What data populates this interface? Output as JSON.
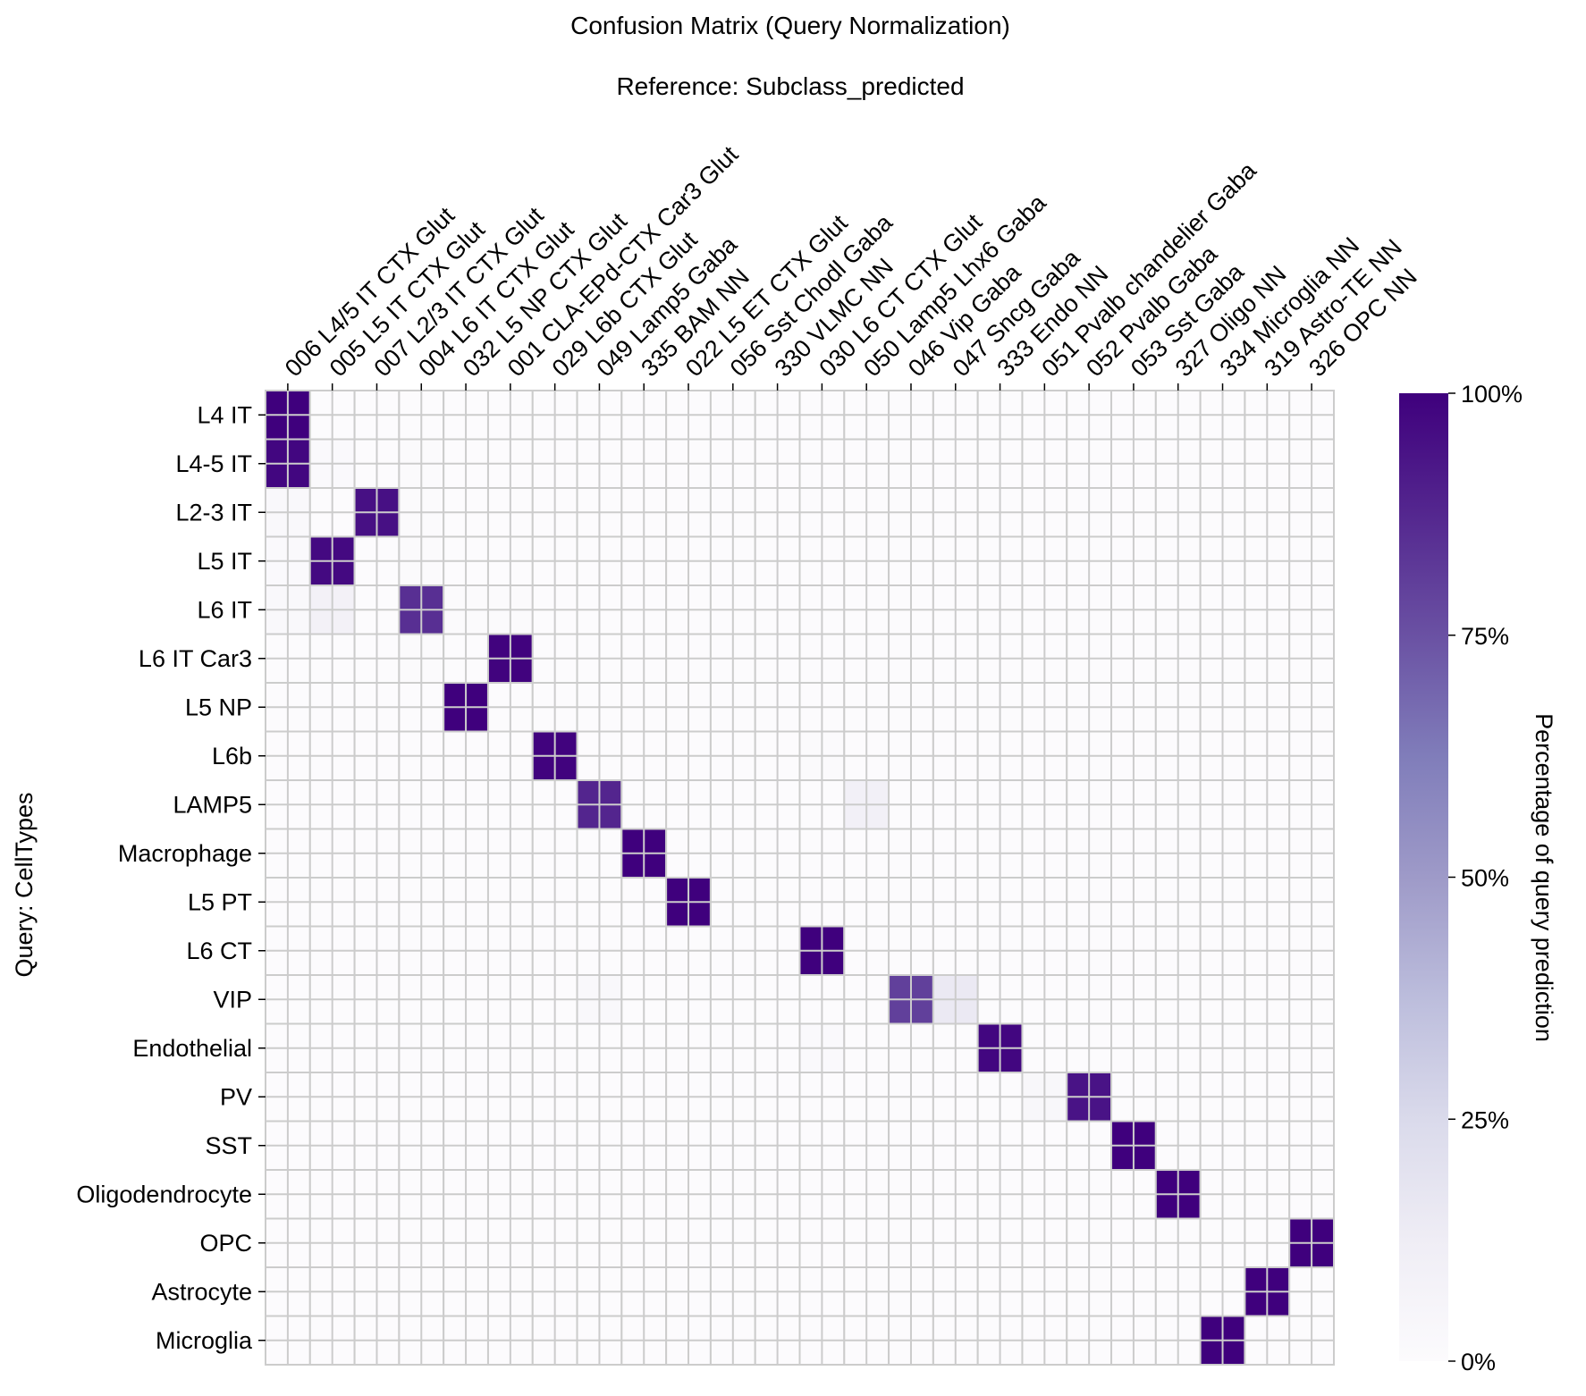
{
  "chart_data": {
    "type": "heatmap",
    "title": "Confusion Matrix (Query Normalization)",
    "subtitle": "Reference: Subclass_predicted",
    "ylabel": "Query: CellTypes",
    "colorbar_label": "Percentage of query prediction",
    "colorbar_ticks": [
      "0%",
      "25%",
      "50%",
      "75%",
      "100%"
    ],
    "colorbar_range": [
      0,
      100
    ],
    "colormap": "Purples",
    "x_categories": [
      "006 L4/5 IT CTX Glut",
      "005 L5 IT CTX Glut",
      "007 L2/3 IT CTX Glut",
      "004 L6 IT CTX Glut",
      "032 L5 NP CTX Glut",
      "001 CLA-EPd-CTX Car3 Glut",
      "029 L6b CTX Glut",
      "049 Lamp5 Gaba",
      "335 BAM NN",
      "022 L5 ET CTX Glut",
      "056 Sst Chodl Gaba",
      "330 VLMC NN",
      "030 L6 CT CTX Glut",
      "050 Lamp5 Lhx6 Gaba",
      "046 Vip Gaba",
      "047 Sncg Gaba",
      "333 Endo NN",
      "051 Pvalb chandelier Gaba",
      "052 Pvalb Gaba",
      "053 Sst Gaba",
      "327 Oligo NN",
      "334 Microglia NN",
      "319 Astro-TE NN",
      "326 OPC NN"
    ],
    "y_categories": [
      "L4 IT",
      "L4-5 IT",
      "L2-3 IT",
      "L5 IT",
      "L6 IT",
      "L6 IT Car3",
      "L5 NP",
      "L6b",
      "LAMP5",
      "Macrophage",
      "L5 PT",
      "L6 CT",
      "VIP",
      "Endothelial",
      "PV",
      "SST",
      "Oligodendrocyte",
      "OPC",
      "Astrocyte",
      "Microglia"
    ],
    "values": [
      [
        100,
        0,
        0,
        0,
        0,
        0,
        0,
        0,
        0,
        0,
        0,
        0,
        0,
        0,
        0,
        0,
        0,
        0,
        0,
        0,
        0,
        0,
        0,
        0
      ],
      [
        98,
        2,
        0,
        1,
        0,
        0,
        0,
        0,
        0,
        0,
        0,
        0,
        0,
        0,
        0,
        0,
        0,
        0,
        0,
        0,
        0,
        0,
        0,
        0
      ],
      [
        3,
        0,
        95,
        1,
        0,
        0,
        0,
        0,
        0,
        0,
        0,
        0,
        0,
        0,
        0,
        0,
        0,
        0,
        0,
        0,
        0,
        0,
        0,
        0
      ],
      [
        2,
        97,
        0,
        1,
        0,
        0,
        0,
        0,
        0,
        0,
        0,
        0,
        0,
        0,
        0,
        0,
        0,
        0,
        0,
        0,
        0,
        0,
        0,
        0
      ],
      [
        3,
        9,
        0,
        85,
        1,
        1,
        0,
        0,
        0,
        0,
        0,
        0,
        0,
        0,
        0,
        0,
        0,
        0,
        0,
        0,
        0,
        0,
        0,
        0
      ],
      [
        0,
        0,
        0,
        1,
        0,
        99,
        0,
        0,
        0,
        0,
        0,
        0,
        0,
        0,
        0,
        0,
        0,
        0,
        0,
        0,
        0,
        0,
        0,
        0
      ],
      [
        0,
        0,
        0,
        0,
        100,
        0,
        0,
        0,
        0,
        0,
        0,
        0,
        0,
        0,
        0,
        0,
        0,
        0,
        0,
        0,
        0,
        0,
        0,
        0
      ],
      [
        0,
        0,
        0,
        0,
        0,
        0,
        99,
        0,
        0,
        0,
        0,
        0,
        1,
        0,
        0,
        0,
        0,
        0,
        0,
        0,
        0,
        0,
        0,
        0
      ],
      [
        0,
        0,
        0,
        0,
        0,
        0,
        0,
        88,
        0,
        0,
        0,
        0,
        0,
        10,
        0,
        0,
        0,
        0,
        0,
        0,
        0,
        0,
        0,
        0
      ],
      [
        0,
        0,
        0,
        0,
        0,
        0,
        0,
        0,
        100,
        0,
        0,
        0,
        0,
        0,
        0,
        0,
        0,
        0,
        0,
        0,
        0,
        0,
        0,
        0
      ],
      [
        0,
        0,
        0,
        0,
        0,
        0,
        0,
        0,
        0,
        100,
        0,
        0,
        0,
        0,
        0,
        0,
        0,
        0,
        0,
        0,
        0,
        0,
        0,
        0
      ],
      [
        0,
        0,
        0,
        0,
        0,
        0,
        0,
        0,
        0,
        0,
        0,
        0,
        100,
        0,
        0,
        0,
        0,
        0,
        0,
        0,
        0,
        0,
        0,
        0
      ],
      [
        0,
        0,
        0,
        0,
        0,
        0,
        0,
        3,
        0,
        0,
        0,
        0,
        0,
        0,
        80,
        15,
        0,
        0,
        0,
        0,
        0,
        0,
        0,
        0
      ],
      [
        0,
        0,
        0,
        0,
        0,
        0,
        0,
        0,
        0,
        0,
        0,
        0,
        2,
        0,
        0,
        0,
        98,
        0,
        0,
        0,
        0,
        0,
        0,
        0
      ],
      [
        0,
        0,
        0,
        0,
        0,
        0,
        0,
        0,
        0,
        0,
        0,
        0,
        0,
        0,
        0,
        0,
        0,
        4,
        94,
        0,
        0,
        0,
        0,
        0
      ],
      [
        0,
        0,
        0,
        0,
        0,
        0,
        0,
        0,
        0,
        0,
        0,
        0,
        0,
        0,
        0,
        0,
        0,
        0,
        0,
        100,
        0,
        0,
        0,
        0
      ],
      [
        0,
        0,
        0,
        0,
        0,
        0,
        0,
        0,
        0,
        0,
        0,
        0,
        0,
        0,
        0,
        0,
        0,
        0,
        0,
        0,
        100,
        0,
        0,
        0
      ],
      [
        0,
        0,
        0,
        0,
        0,
        0,
        0,
        0,
        0,
        0,
        0,
        0,
        0,
        0,
        0,
        0,
        0,
        0,
        0,
        0,
        0,
        0,
        0,
        100
      ],
      [
        0,
        0,
        0,
        0,
        0,
        0,
        0,
        0,
        0,
        0,
        0,
        0,
        0,
        0,
        0,
        0,
        0,
        0,
        0,
        0,
        0,
        0,
        100,
        0
      ],
      [
        0,
        0,
        0,
        0,
        0,
        0,
        0,
        0,
        0,
        0,
        0,
        0,
        0,
        0,
        0,
        0,
        0,
        0,
        0,
        0,
        0,
        100,
        0,
        0
      ]
    ],
    "grid": true,
    "colors": {
      "low": "#fcfbfd",
      "high": "#3f007d",
      "grid_line": "#cccccc"
    }
  }
}
